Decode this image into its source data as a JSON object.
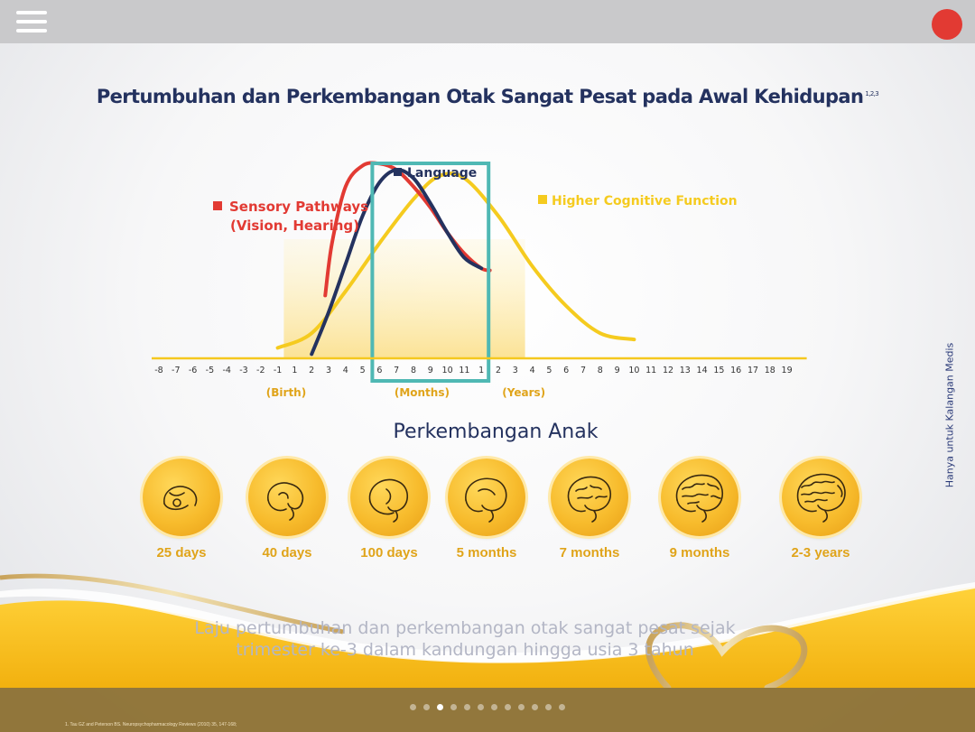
{
  "title": "Pertumbuhan dan Perkembangan Otak Sangat Pesat pada Awal Kehidupan",
  "title_sup": "1,2,3",
  "subtitle": "Perkembangan Anak",
  "side_note": "Hanya untuk Kalangan Medis",
  "caption_line1": "Laju pertumbuhan dan perkembangan otak sangat pesat sejak",
  "caption_line2": "trimester ke-3 dalam kandungan hingga usia 3 tahun",
  "footnote": "1. Tau GZ and Peterson BS. Neuropsychopharmacology Reviews (2010) 35, 147-168;",
  "stages": [
    "25 days",
    "40 days",
    "100 days",
    "5 months",
    "7 months",
    "9 months",
    "2-3 years"
  ],
  "pagination": {
    "total": 12,
    "active": 2
  },
  "colors": {
    "sensory": "#e23a33",
    "language": "#24325f",
    "cognitive": "#f5cb1f",
    "highlight_box": "#4fb8b4",
    "accent": "#e0a41a"
  },
  "chart_data": {
    "type": "line",
    "x_axis": {
      "segments": [
        {
          "label": "(Birth)",
          "ticks": [
            "-8",
            "-7",
            "-6",
            "-5",
            "-4",
            "-3",
            "-2",
            "-1",
            "1",
            "2",
            "3",
            "4",
            "5"
          ]
        },
        {
          "label": "(Months)",
          "ticks": [
            "6",
            "7",
            "8",
            "9",
            "10",
            "11"
          ]
        },
        {
          "label": "(Years)",
          "ticks": [
            "1",
            "2",
            "3",
            "4",
            "5",
            "6",
            "7",
            "8",
            "9",
            "10",
            "11",
            "12",
            "13",
            "14",
            "15",
            "16",
            "17",
            "18",
            "19"
          ]
        }
      ]
    },
    "x_index_note": "x = position index along the printed tick sequence (0 = first tick '-8', 39 = last tick '19')",
    "series": [
      {
        "name": "Sensory Pathways (Vision, Hearing)",
        "x": [
          9.8,
          10.2,
          11,
          12,
          13,
          14,
          15,
          16,
          17,
          18,
          19,
          19.5
        ],
        "y": [
          0.3,
          0.55,
          0.82,
          0.92,
          0.93,
          0.9,
          0.82,
          0.72,
          0.6,
          0.5,
          0.43,
          0.42
        ]
      },
      {
        "name": "Language",
        "x": [
          9,
          10,
          11,
          12,
          13,
          14,
          15,
          16,
          17,
          18,
          19
        ],
        "y": [
          0.02,
          0.22,
          0.45,
          0.68,
          0.84,
          0.9,
          0.86,
          0.74,
          0.6,
          0.48,
          0.43
        ]
      },
      {
        "name": "Higher Cognitive Function",
        "x": [
          7,
          9,
          11,
          13,
          15,
          16.5,
          18,
          20,
          22,
          24,
          26,
          28
        ],
        "y": [
          0.05,
          0.12,
          0.32,
          0.55,
          0.76,
          0.87,
          0.86,
          0.68,
          0.44,
          0.25,
          0.12,
          0.09
        ]
      }
    ],
    "legend_labels": [
      "Sensory Pathways",
      "(Vision, Hearing)",
      "Language",
      "Higher Cognitive Function"
    ],
    "highlight": {
      "from_tick": "6 (months)",
      "to_tick": "1 (years)"
    },
    "grid": false
  }
}
